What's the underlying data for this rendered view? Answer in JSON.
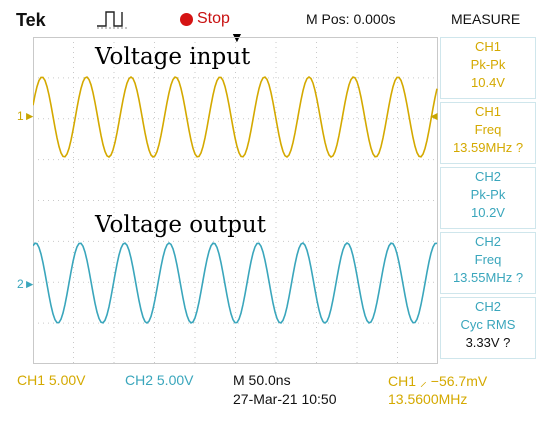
{
  "header": {
    "brand": "Tek",
    "status": "Stop",
    "mpos": "M Pos: 0.000s",
    "measure_title": "MEASURE",
    "stop_color": "#d51313"
  },
  "channel_markers": {
    "ch1": "1",
    "ch2": "2"
  },
  "labels": {
    "input": "Voltage input",
    "output": "Voltage output"
  },
  "measurements": [
    {
      "ch": "CH1",
      "type": "Pk-Pk",
      "value": "10.4V"
    },
    {
      "ch": "CH1",
      "type": "Freq",
      "value": "13.59MHz ?"
    },
    {
      "ch": "CH2",
      "type": "Pk-Pk",
      "value": "10.2V"
    },
    {
      "ch": "CH2",
      "type": "Freq",
      "value": "13.55MHz ?"
    },
    {
      "ch": "CH2",
      "type": "Cyc RMS",
      "value": "3.33V ?"
    }
  ],
  "footer": {
    "ch1_scale": "CH1  5.00V",
    "ch2_scale": "CH2  5.00V",
    "timebase": "M 50.0ns",
    "date": "27-Mar-21 10:50",
    "trigger": "CH1 ⸝ −56.7mV",
    "trigger_freq": "13.5600MHz"
  },
  "colors": {
    "ch1": "#d4a900",
    "ch2": "#3aa6bc",
    "grid": "#c9c9c9"
  },
  "waveforms": {
    "ch1": {
      "cycles_on_screen": 9.1
    },
    "ch2": {
      "cycles_on_screen": 9.1
    }
  }
}
